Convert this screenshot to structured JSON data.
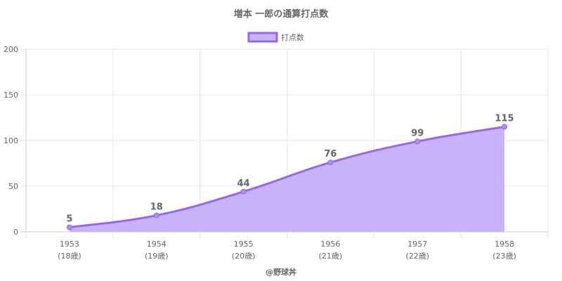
{
  "chart_data": {
    "type": "area",
    "title": "増本 一郎の通算打点数",
    "categories": [
      "1953",
      "1954",
      "1955",
      "1956",
      "1957",
      "1958"
    ],
    "category_sublabels": [
      "(18歳)",
      "(19歳)",
      "(20歳)",
      "(21歳)",
      "(22歳)",
      "(23歳)"
    ],
    "series": [
      {
        "name": "打点数",
        "values": [
          5,
          18,
          44,
          76,
          99,
          115
        ]
      }
    ],
    "data_labels": [
      "5",
      "18",
      "44",
      "76",
      "99",
      "115"
    ],
    "y_ticks": [
      "0",
      "50",
      "100",
      "150",
      "200"
    ],
    "ylim": [
      0,
      200
    ],
    "xlabel": "",
    "ylabel": "",
    "legend_position": "top-center",
    "grid": true,
    "credit": "@野球丼",
    "colors": {
      "line": "#9966ee",
      "fill": "#c9b3fb",
      "grid": "#e5e5e5",
      "axis": "#cccccc",
      "text": "#666666"
    }
  }
}
